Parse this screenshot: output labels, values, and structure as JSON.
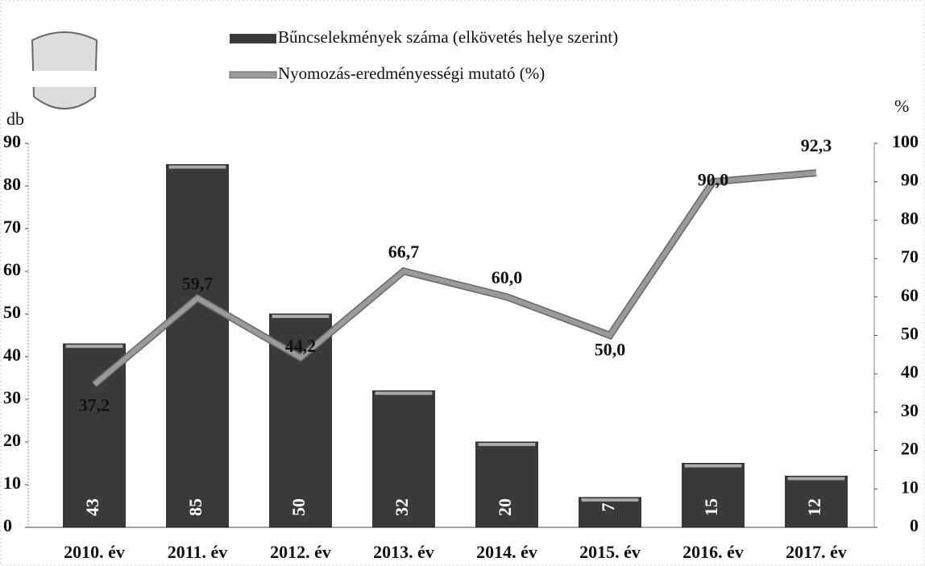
{
  "chart_data": {
    "type": "bar",
    "categories": [
      "2010. év",
      "2011. év",
      "2012. év",
      "2013. év",
      "2014. év",
      "2015. év",
      "2016. év",
      "2017. év"
    ],
    "series": [
      {
        "name": "Bűncselekmények száma (elkövetés helye szerint)",
        "color": "#3a3a3a",
        "values": [
          43,
          85,
          50,
          32,
          20,
          7,
          15,
          12
        ]
      },
      {
        "name": "Nyomozás-eredményességi mutató (%)",
        "type": "line",
        "axis": "y2",
        "color": "#9a9a9a",
        "values": [
          37.2,
          59.7,
          44.2,
          66.7,
          60.0,
          50.0,
          90.0,
          92.3
        ],
        "value_labels": [
          "37,2",
          "59,7",
          "44,2",
          "66,7",
          "60,0",
          "50,0",
          "90,0",
          "92,3"
        ]
      }
    ],
    "ylabel": "db",
    "y2label": "%",
    "ylim": [
      0,
      90
    ],
    "yticks": [
      0,
      10,
      20,
      30,
      40,
      50,
      60,
      70,
      80,
      90
    ],
    "y2lim": [
      0,
      100
    ],
    "y2ticks": [
      0,
      10,
      20,
      30,
      40,
      50,
      60,
      70,
      80,
      90,
      100
    ],
    "legend": "top",
    "grid": false
  }
}
